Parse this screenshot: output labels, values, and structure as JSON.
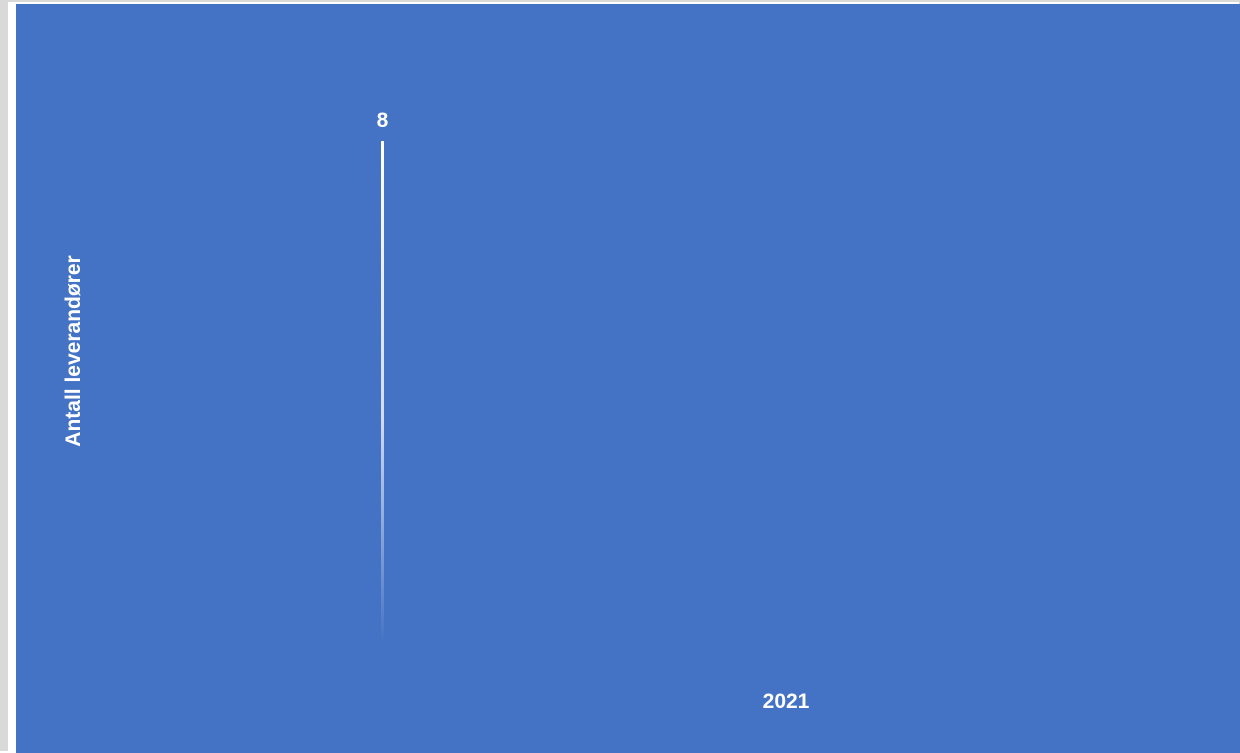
{
  "chart_data": {
    "type": "bar",
    "categories": [
      "2021"
    ],
    "series": [
      {
        "values": [
          8
        ]
      }
    ],
    "data_labels": [
      "8"
    ],
    "ylabel": "Antall leverandører",
    "xlabel": "",
    "title": "",
    "ylim": [
      0,
      8
    ],
    "grid": false,
    "legend": "none",
    "colors": {
      "background": "#4472c4",
      "bar": "#ffffff",
      "text": "#ffffff",
      "frame": "#d9d9d9"
    }
  }
}
